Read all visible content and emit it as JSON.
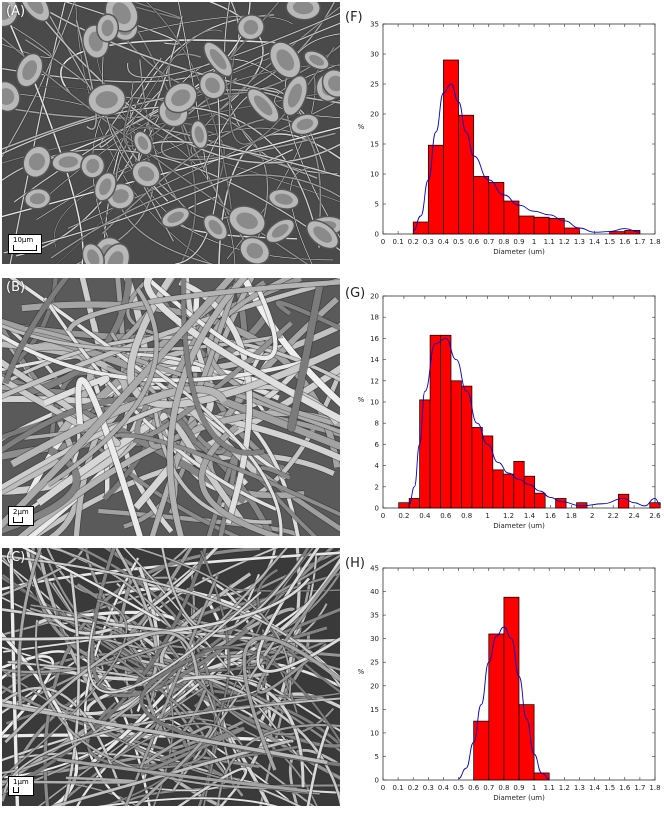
{
  "panels": {
    "a": {
      "label": "(A)",
      "scale": "10μm"
    },
    "b": {
      "label": "(B)",
      "scale": "2μm"
    },
    "c": {
      "label": "(C)",
      "scale": "1μm"
    },
    "f": {
      "label": "(F)"
    },
    "g": {
      "label": "(G)"
    },
    "h": {
      "label": "(H)"
    }
  },
  "colors": {
    "bar": "#ff0000",
    "fit": "#0000cc",
    "axis": "#333333"
  },
  "chart_data": [
    {
      "type": "bar",
      "panel": "(F)",
      "xlabel": "Diameter (um)",
      "ylabel": "%",
      "xlim": [
        0,
        1.8
      ],
      "ylim": [
        0,
        35
      ],
      "xticks": [
        0,
        0.1,
        0.2,
        0.3,
        0.4,
        0.5,
        0.6,
        0.7,
        0.8,
        0.9,
        1,
        1.1,
        1.2,
        1.3,
        1.4,
        1.5,
        1.6,
        1.7,
        1.8
      ],
      "yticks": [
        0,
        5,
        10,
        15,
        20,
        25,
        30,
        35
      ],
      "bar_width": 0.1,
      "bars": [
        {
          "x": 0.25,
          "y": 2
        },
        {
          "x": 0.35,
          "y": 14.8
        },
        {
          "x": 0.45,
          "y": 29
        },
        {
          "x": 0.55,
          "y": 19.8
        },
        {
          "x": 0.65,
          "y": 9.6
        },
        {
          "x": 0.75,
          "y": 8.6
        },
        {
          "x": 0.85,
          "y": 5.5
        },
        {
          "x": 0.95,
          "y": 3
        },
        {
          "x": 1.05,
          "y": 2.8
        },
        {
          "x": 1.15,
          "y": 2.6
        },
        {
          "x": 1.25,
          "y": 1
        },
        {
          "x": 1.55,
          "y": 0.4
        },
        {
          "x": 1.65,
          "y": 0.6
        }
      ],
      "fit": [
        [
          0.2,
          0.5
        ],
        [
          0.25,
          3
        ],
        [
          0.3,
          9
        ],
        [
          0.35,
          17
        ],
        [
          0.4,
          23.5
        ],
        [
          0.45,
          25
        ],
        [
          0.5,
          22
        ],
        [
          0.55,
          17
        ],
        [
          0.6,
          13
        ],
        [
          0.7,
          9
        ],
        [
          0.8,
          6.5
        ],
        [
          0.9,
          4.8
        ],
        [
          1.0,
          3.8
        ],
        [
          1.1,
          3.2
        ],
        [
          1.2,
          2.2
        ],
        [
          1.3,
          1.0
        ],
        [
          1.4,
          0.3
        ],
        [
          1.5,
          0.4
        ],
        [
          1.6,
          0.9
        ],
        [
          1.7,
          0.3
        ]
      ]
    },
    {
      "type": "bar",
      "panel": "(G)",
      "xlabel": "Diameter (um)",
      "ylabel": "%",
      "xlim": [
        0,
        2.6
      ],
      "ylim": [
        0,
        20
      ],
      "xticks": [
        0,
        0.2,
        0.4,
        0.6,
        0.8,
        1,
        1.2,
        1.4,
        1.6,
        1.8,
        2,
        2.2,
        2.4,
        2.6
      ],
      "yticks": [
        0,
        2,
        4,
        6,
        8,
        10,
        12,
        14,
        16,
        18,
        20
      ],
      "bar_width": 0.1,
      "bars": [
        {
          "x": 0.2,
          "y": 0.5
        },
        {
          "x": 0.3,
          "y": 0.9
        },
        {
          "x": 0.4,
          "y": 10.2
        },
        {
          "x": 0.5,
          "y": 16.3
        },
        {
          "x": 0.6,
          "y": 16.3
        },
        {
          "x": 0.7,
          "y": 12
        },
        {
          "x": 0.8,
          "y": 11.5
        },
        {
          "x": 0.9,
          "y": 7.6
        },
        {
          "x": 1.0,
          "y": 6.8
        },
        {
          "x": 1.1,
          "y": 3.6
        },
        {
          "x": 1.2,
          "y": 3.2
        },
        {
          "x": 1.3,
          "y": 4.4
        },
        {
          "x": 1.4,
          "y": 3
        },
        {
          "x": 1.5,
          "y": 1.4
        },
        {
          "x": 1.7,
          "y": 0.9
        },
        {
          "x": 1.9,
          "y": 0.5
        },
        {
          "x": 2.3,
          "y": 1.3
        },
        {
          "x": 2.6,
          "y": 0.5
        }
      ],
      "fit": [
        [
          0.25,
          0.3
        ],
        [
          0.3,
          2
        ],
        [
          0.35,
          6
        ],
        [
          0.4,
          11
        ],
        [
          0.5,
          15.5
        ],
        [
          0.6,
          16
        ],
        [
          0.7,
          14
        ],
        [
          0.8,
          11
        ],
        [
          0.9,
          8
        ],
        [
          1.0,
          6
        ],
        [
          1.1,
          4.3
        ],
        [
          1.2,
          3.3
        ],
        [
          1.3,
          2.7
        ],
        [
          1.4,
          2.2
        ],
        [
          1.5,
          1.6
        ],
        [
          1.6,
          1.0
        ],
        [
          1.7,
          0.6
        ],
        [
          1.9,
          0.2
        ],
        [
          2.1,
          0.4
        ],
        [
          2.3,
          0.9
        ],
        [
          2.4,
          0.5
        ],
        [
          2.5,
          0.2
        ],
        [
          2.6,
          0.9
        ],
        [
          2.65,
          0.3
        ]
      ]
    },
    {
      "type": "bar",
      "panel": "(H)",
      "xlabel": "Diameter (um)",
      "ylabel": "%",
      "xlim": [
        0,
        1.8
      ],
      "ylim": [
        0,
        45
      ],
      "xticks": [
        0,
        0.1,
        0.2,
        0.3,
        0.4,
        0.5,
        0.6,
        0.7,
        0.8,
        0.9,
        1,
        1.1,
        1.2,
        1.3,
        1.4,
        1.5,
        1.6,
        1.7,
        1.8
      ],
      "yticks": [
        0,
        5,
        10,
        15,
        20,
        25,
        30,
        35,
        40,
        45
      ],
      "bar_width": 0.1,
      "bars": [
        {
          "x": 0.65,
          "y": 12.5
        },
        {
          "x": 0.75,
          "y": 31
        },
        {
          "x": 0.85,
          "y": 38.8
        },
        {
          "x": 0.95,
          "y": 16
        },
        {
          "x": 1.05,
          "y": 1.5
        }
      ],
      "fit": [
        [
          0.5,
          0.3
        ],
        [
          0.55,
          2.5
        ],
        [
          0.6,
          8
        ],
        [
          0.65,
          16
        ],
        [
          0.7,
          25
        ],
        [
          0.75,
          30.5
        ],
        [
          0.8,
          32.5
        ],
        [
          0.85,
          30
        ],
        [
          0.9,
          22
        ],
        [
          0.95,
          13
        ],
        [
          1.0,
          5.5
        ],
        [
          1.05,
          1.5
        ],
        [
          1.1,
          0.2
        ]
      ]
    }
  ]
}
